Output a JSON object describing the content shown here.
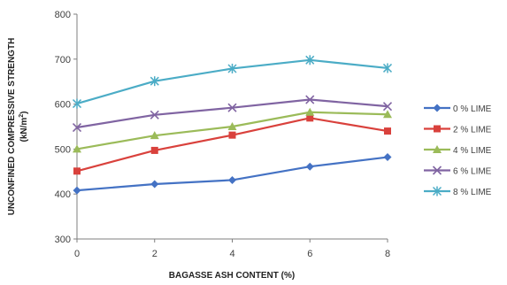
{
  "chart_data": {
    "type": "line",
    "title": "",
    "xlabel": "BAGASSE ASH CONTENT (%)",
    "ylabel_main": "UNCONFINED COMPRESSIVE STRENGTH",
    "ylabel_unit_prefix": "(kN/m",
    "ylabel_unit_sup": "2",
    "ylabel_unit_suffix": ")",
    "x": [
      0,
      2,
      4,
      6,
      8
    ],
    "xlim": [
      0,
      8
    ],
    "ylim": [
      300,
      800
    ],
    "xticks": [
      "0",
      "2",
      "4",
      "6",
      "8"
    ],
    "yticks": [
      "300",
      "400",
      "500",
      "600",
      "700",
      "800"
    ],
    "grid": false,
    "legend_position": "right",
    "series": [
      {
        "name": "0 % LIME",
        "marker": "diamond",
        "color": "#4472C4",
        "values": [
          408,
          422,
          431,
          461,
          482
        ]
      },
      {
        "name": "2 % LIME",
        "marker": "square",
        "color": "#D9413C",
        "values": [
          451,
          497,
          531,
          569,
          540
        ]
      },
      {
        "name": "4 % LIME",
        "marker": "triangle",
        "color": "#9BBB59",
        "values": [
          500,
          530,
          550,
          582,
          577
        ]
      },
      {
        "name": "6 % LIME",
        "marker": "x",
        "color": "#8064A2",
        "values": [
          548,
          576,
          592,
          610,
          595
        ]
      },
      {
        "name": "8 % LIME",
        "marker": "star",
        "color": "#4BACC6",
        "values": [
          601,
          651,
          679,
          698,
          680
        ]
      }
    ]
  }
}
